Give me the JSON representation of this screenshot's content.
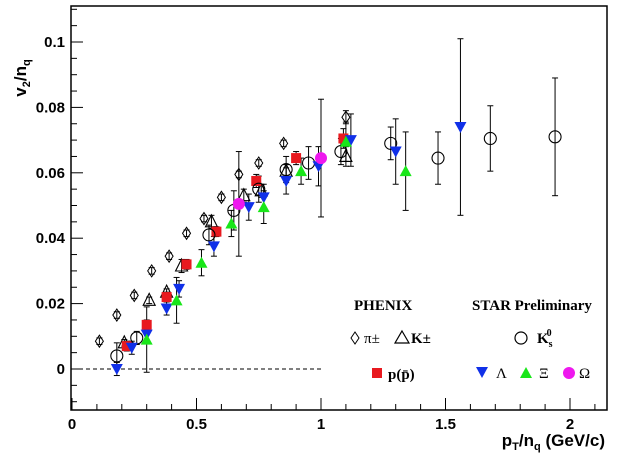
{
  "chart_data": {
    "type": "scatter",
    "title": "",
    "xlabel": "p_T/n_q (GeV/c)",
    "ylabel": "v_2/n_q",
    "xlim": [
      0,
      2.2
    ],
    "ylim": [
      -0.012,
      0.112
    ],
    "x_ticks": [
      0,
      0.5,
      1,
      1.5,
      2
    ],
    "x_tick_labels": [
      "0",
      "0.5",
      "1",
      "1.5",
      "2"
    ],
    "y_ticks": [
      0,
      0.02,
      0.04,
      0.06,
      0.08,
      0.1
    ],
    "y_tick_labels": [
      "0",
      "0.02",
      "0.04",
      "0.06",
      "0.08",
      "0.1"
    ],
    "zero_line": true,
    "grid": false,
    "legend": {
      "left_header": "PHENIX",
      "right_header": "STAR Preliminary",
      "pi": "π±",
      "kaon": "K±",
      "p": "p(p̄)",
      "k0s": "K",
      "k0s_sub": "s",
      "k0s_sup": "0",
      "lambda": "Λ",
      "xi": "Ξ",
      "omega": "Ω"
    },
    "series": [
      {
        "name": "π±",
        "marker": "diamond-open",
        "color": "#000000",
        "x": [
          0.11,
          0.18,
          0.25,
          0.32,
          0.39,
          0.46,
          0.53,
          0.6,
          0.67,
          0.75,
          0.85,
          1.1
        ],
        "y": [
          0.0085,
          0.0165,
          0.0225,
          0.03,
          0.0345,
          0.0415,
          0.046,
          0.0525,
          0.0595,
          0.063,
          0.069,
          0.077
        ],
        "err": [
          0.001,
          0.001,
          0.001,
          0.001,
          0.001,
          0.001,
          0.001,
          0.001,
          0.001,
          0.001,
          0.001,
          0.002
        ]
      },
      {
        "name": "K±",
        "marker": "triangle-open",
        "color": "#000000",
        "x": [
          0.21,
          0.31,
          0.38,
          0.44,
          0.56,
          0.69,
          0.76,
          0.86,
          1.1
        ],
        "y": [
          0.008,
          0.021,
          0.0235,
          0.0315,
          0.045,
          0.053,
          0.0545,
          0.0605,
          0.065
        ],
        "err": [
          0.001,
          0.001,
          0.001,
          0.002,
          0.002,
          0.002,
          0.002,
          0.002,
          0.003
        ]
      },
      {
        "name": "p(p̄)",
        "marker": "square-filled",
        "color": "#e8191f",
        "x": [
          0.22,
          0.3,
          0.38,
          0.46,
          0.58,
          0.74,
          0.9,
          1.09
        ],
        "y": [
          0.007,
          0.0135,
          0.022,
          0.032,
          0.042,
          0.0575,
          0.0645,
          0.0705
        ],
        "err": [
          0.0015,
          0.0015,
          0.0015,
          0.0015,
          0.0015,
          0.002,
          0.002,
          0.003
        ]
      },
      {
        "name": "K0s",
        "marker": "circle-open",
        "color": "#000000",
        "x": [
          0.18,
          0.26,
          0.55,
          0.65,
          0.75,
          0.86,
          0.95,
          1.08,
          1.28,
          1.47,
          1.68,
          1.94
        ],
        "y": [
          0.004,
          0.0095,
          0.041,
          0.0485,
          0.055,
          0.061,
          0.063,
          0.0665,
          0.069,
          0.0645,
          0.0705,
          0.071
        ],
        "err": [
          0.004,
          0.002,
          0.003,
          0.006,
          0.004,
          0.004,
          0.005,
          0.004,
          0.005,
          0.008,
          0.01,
          0.018
        ]
      },
      {
        "name": "Λ",
        "marker": "triangle-down-filled",
        "color": "#1030e8",
        "x": [
          0.18,
          0.24,
          0.3,
          0.38,
          0.43,
          0.57,
          0.71,
          0.77,
          0.86,
          0.99,
          1.12,
          1.3,
          1.56
        ],
        "y": [
          0.0,
          0.0065,
          0.0105,
          0.0185,
          0.0245,
          0.0375,
          0.0495,
          0.0525,
          0.0575,
          0.062,
          0.07,
          0.0665,
          0.074
        ],
        "err": [
          0.002,
          0.002,
          0.0025,
          0.002,
          0.0025,
          0.003,
          0.004,
          0.004,
          0.004,
          0.006,
          0.008,
          0.01,
          0.027
        ]
      },
      {
        "name": "Ξ",
        "marker": "triangle-up-filled",
        "color": "#19e619",
        "x": [
          0.3,
          0.42,
          0.52,
          0.64,
          0.77,
          0.92,
          1.1,
          1.34
        ],
        "y": [
          0.009,
          0.021,
          0.0325,
          0.0445,
          0.0495,
          0.0605,
          0.0695,
          0.0605
        ],
        "err": [
          0.01,
          0.007,
          0.004,
          0.004,
          0.005,
          0.004,
          0.006,
          0.012
        ]
      },
      {
        "name": "Ω",
        "marker": "circle-filled",
        "color": "#ee18ee",
        "x": [
          0.67,
          1.0
        ],
        "y": [
          0.0505,
          0.0645
        ],
        "err": [
          0.016,
          0.018
        ]
      }
    ]
  }
}
